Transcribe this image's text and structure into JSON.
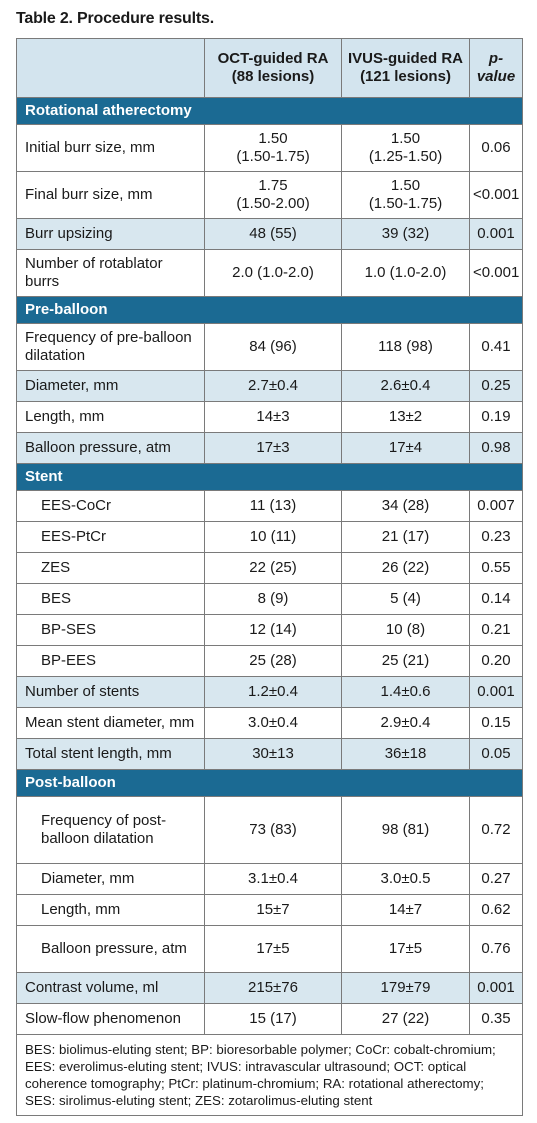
{
  "title": "Table 2. Procedure results.",
  "headers": {
    "col1": "",
    "col2": "OCT-guided RA (88 lesions)",
    "col2_l1": "OCT-guided RA",
    "col2_l2": "(88 lesions)",
    "col3_l1": "IVUS-guided RA",
    "col3_l2": "(121 lesions)",
    "col4": "p-value",
    "col4_p": "p",
    "col4_rest": "-value"
  },
  "sections": [
    {
      "name": "Rotational atherectomy",
      "rows": [
        {
          "label": "Initial burr size, mm",
          "oct": "1.50 (1.50-1.75)",
          "oct_l1": "1.50",
          "oct_l2": "(1.50-1.75)",
          "ivus_l1": "1.50",
          "ivus_l2": "(1.25-1.50)",
          "p": "0.06"
        },
        {
          "label": "Final burr size, mm",
          "oct_l1": "1.75",
          "oct_l2": "(1.50-2.00)",
          "ivus_l1": "1.50",
          "ivus_l2": "(1.50-1.75)",
          "p": "<0.001"
        },
        {
          "label": "Burr upsizing",
          "oct": "48 (55)",
          "ivus": "39 (32)",
          "p": "0.001"
        },
        {
          "label": "Number of rotablator burrs",
          "oct": "2.0 (1.0-2.0)",
          "ivus": "1.0 (1.0-2.0)",
          "p": "<0.001"
        }
      ]
    },
    {
      "name": "Pre-balloon",
      "rows": [
        {
          "label": "Frequency of pre-balloon dilatation",
          "oct": "84 (96)",
          "ivus": "118 (98)",
          "p": "0.41"
        },
        {
          "label": "Diameter, mm",
          "oct": "2.7±0.4",
          "ivus": "2.6±0.4",
          "p": "0.25"
        },
        {
          "label": "Length, mm",
          "oct": "14±3",
          "ivus": "13±2",
          "p": "0.19"
        },
        {
          "label": "Balloon pressure, atm",
          "oct": "17±3",
          "ivus": "17±4",
          "p": "0.98"
        }
      ]
    },
    {
      "name": "Stent",
      "rows": [
        {
          "label": "EES-CoCr",
          "oct": "11 (13)",
          "ivus": "34 (28)",
          "p": "0.007"
        },
        {
          "label": "EES-PtCr",
          "oct": "10 (11)",
          "ivus": "21 (17)",
          "p": "0.23"
        },
        {
          "label": "ZES",
          "oct": "22 (25)",
          "ivus": "26 (22)",
          "p": "0.55"
        },
        {
          "label": "BES",
          "oct": "8 (9)",
          "ivus": "5 (4)",
          "p": "0.14"
        },
        {
          "label": "BP-SES",
          "oct": "12 (14)",
          "ivus": "10 (8)",
          "p": "0.21"
        },
        {
          "label": "BP-EES",
          "oct": "25 (28)",
          "ivus": "25 (21)",
          "p": "0.20"
        },
        {
          "label": "Number of stents",
          "oct": "1.2±0.4",
          "ivus": "1.4±0.6",
          "p": "0.001"
        },
        {
          "label": "Mean stent diameter, mm",
          "oct": "3.0±0.4",
          "ivus": "2.9±0.4",
          "p": "0.15"
        },
        {
          "label": "Total stent length, mm",
          "oct": "30±13",
          "ivus": "36±18",
          "p": "0.05"
        }
      ]
    },
    {
      "name": "Post-balloon",
      "rows": [
        {
          "label": "Frequency of post-balloon dilatation",
          "oct": "73 (83)",
          "ivus": "98 (81)",
          "p": "0.72"
        },
        {
          "label": "Diameter, mm",
          "oct": "3.1±0.4",
          "ivus": "3.0±0.5",
          "p": "0.27"
        },
        {
          "label": "Length, mm",
          "oct": "15±7",
          "ivus": "14±7",
          "p": "0.62"
        },
        {
          "label": "Balloon pressure, atm",
          "oct": "17±5",
          "ivus": "17±5",
          "p": "0.76"
        },
        {
          "label": "Contrast volume, ml",
          "oct": "215±76",
          "ivus": "179±79",
          "p": "0.001"
        },
        {
          "label": "Slow-flow phenomenon",
          "oct": "15 (17)",
          "ivus": "27 (22)",
          "p": "0.35"
        }
      ]
    }
  ],
  "footnote": "BES: biolimus-eluting stent; BP: bioresorbable polymer; CoCr: cobalt-chromium; EES: everolimus-eluting stent; IVUS: intravascular ultrasound; OCT: optical coherence tomography; PtCr: platinum-chromium; RA: rotational atherectomy; SES: sirolimus-eluting stent; ZES: zotarolimus-eluting stent",
  "colors": {
    "section_bg": "#1b6a93",
    "header_bg": "#d3e4ee",
    "shade_bg": "#d8e7ef"
  }
}
